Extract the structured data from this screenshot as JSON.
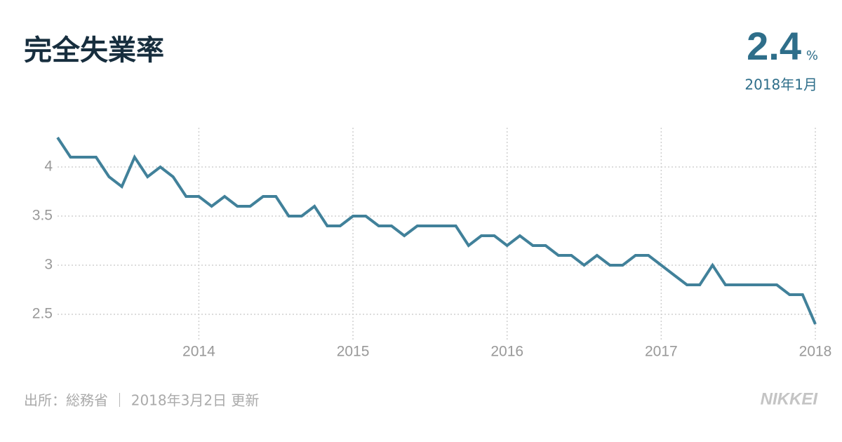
{
  "chart_data": {
    "type": "line",
    "title": "完全失業率",
    "latest": {
      "value": 2.4,
      "unit": "%",
      "date": "2018年1月"
    },
    "source": "出所：総務省 ｜ 2018年3月2日 更新",
    "logo": "NIKKEI",
    "x": [
      2013.083,
      2013.167,
      2013.25,
      2013.333,
      2013.417,
      2013.5,
      2013.583,
      2013.667,
      2013.75,
      2013.833,
      2013.917,
      2014,
      2014.083,
      2014.167,
      2014.25,
      2014.333,
      2014.417,
      2014.5,
      2014.583,
      2014.667,
      2014.75,
      2014.833,
      2014.917,
      2015,
      2015.083,
      2015.167,
      2015.25,
      2015.333,
      2015.417,
      2015.5,
      2015.583,
      2015.667,
      2015.75,
      2015.833,
      2015.917,
      2016,
      2016.083,
      2016.167,
      2016.25,
      2016.333,
      2016.417,
      2016.5,
      2016.583,
      2016.667,
      2016.75,
      2016.833,
      2016.917,
      2017,
      2017.083,
      2017.167,
      2017.25,
      2017.333,
      2017.417,
      2017.5,
      2017.583,
      2017.667,
      2017.75,
      2017.833,
      2017.917,
      2018
    ],
    "values": [
      4.3,
      4.1,
      4.1,
      4.1,
      3.9,
      3.8,
      4.1,
      3.9,
      4.0,
      3.9,
      3.7,
      3.7,
      3.6,
      3.7,
      3.6,
      3.6,
      3.7,
      3.7,
      3.5,
      3.5,
      3.6,
      3.4,
      3.4,
      3.5,
      3.5,
      3.4,
      3.4,
      3.3,
      3.4,
      3.4,
      3.4,
      3.4,
      3.2,
      3.3,
      3.3,
      3.2,
      3.3,
      3.2,
      3.2,
      3.1,
      3.1,
      3.0,
      3.1,
      3.0,
      3.0,
      3.1,
      3.1,
      3.0,
      2.9,
      2.8,
      2.8,
      3.0,
      2.8,
      2.8,
      2.8,
      2.8,
      2.8,
      2.7,
      2.7,
      2.4
    ],
    "color": "#41819a",
    "xlim": [
      2013.083,
      2018
    ],
    "xticks": [
      2014,
      2015,
      2016,
      2017,
      2018
    ],
    "ylim": [
      2.3,
      4.4
    ],
    "yticks": [
      2.5,
      3,
      3.5,
      4
    ],
    "grid": true
  }
}
